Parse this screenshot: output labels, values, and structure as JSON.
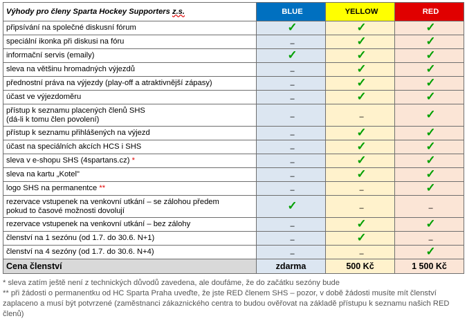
{
  "table": {
    "title_prefix": "Výhody pro členy Sparta Hockey Supporters ",
    "title_suffix": "z.s.",
    "tiers": [
      "BLUE",
      "YELLOW",
      "RED"
    ],
    "rows": [
      {
        "label": "připsívání na společné diskusní fórum",
        "star": "",
        "marks": [
          true,
          true,
          true
        ]
      },
      {
        "label": "speciální ikonka při diskusi na fóru",
        "star": "",
        "marks": [
          false,
          true,
          true
        ]
      },
      {
        "label": "informační servis (emaily)",
        "star": "",
        "marks": [
          true,
          true,
          true
        ]
      },
      {
        "label": "sleva na většinu hromadných výjezdů",
        "star": "",
        "marks": [
          false,
          true,
          true
        ]
      },
      {
        "label": "přednostní práva na výjezdy (play-off a atraktivnější zápasy)",
        "star": "",
        "marks": [
          false,
          true,
          true
        ]
      },
      {
        "label": "účast ve výjezdoměru",
        "star": "",
        "marks": [
          false,
          true,
          true
        ]
      },
      {
        "label": "přístup k seznamu placených členů SHS",
        "label2": "(dá-li k tomu člen povolení)",
        "star": "",
        "marks": [
          false,
          false,
          true
        ]
      },
      {
        "label": "přístup k seznamu přihlášených na výjezd",
        "star": "",
        "marks": [
          false,
          true,
          true
        ]
      },
      {
        "label": "účast na speciálních akcích HCS i SHS",
        "star": "",
        "marks": [
          false,
          true,
          true
        ]
      },
      {
        "label": "sleva v e-shopu SHS (4spartans.cz)",
        "star": "*",
        "marks": [
          false,
          true,
          true
        ]
      },
      {
        "label": "sleva na kartu „Kotel\"",
        "star": "",
        "marks": [
          false,
          true,
          true
        ]
      },
      {
        "label": "logo SHS na permanentce",
        "star": "**",
        "marks": [
          false,
          false,
          true
        ]
      },
      {
        "label": "rezervace vstupenek na venkovní utkání – se zálohou předem",
        "label2": "pokud to časové možnosti dovolují",
        "star": "",
        "marks": [
          true,
          false,
          false
        ]
      },
      {
        "label": "rezervace vstupenek na venkovní utkání – bez zálohy",
        "star": "",
        "marks": [
          false,
          true,
          true
        ]
      },
      {
        "label": "členství na 1 sezónu (od 1.7. do 30.6. N+1)",
        "star": "",
        "marks": [
          false,
          true,
          false
        ]
      },
      {
        "label": "členství na 4 sezóny (od 1.7. do 30.6. N+4)",
        "star": "",
        "marks": [
          false,
          false,
          true
        ]
      }
    ],
    "price": {
      "label": "Cena členství",
      "values": [
        "zdarma",
        "500 Kč",
        "1 500 Kč"
      ]
    }
  },
  "symbols": {
    "check": "✓",
    "dash": "–"
  },
  "colors": {
    "blue": "#0070c0",
    "yellow": "#ffff00",
    "red": "#e00000",
    "check": "#00a000"
  },
  "notes": [
    "* sleva zatím ještě není z technických důvodů zavedena, ale doufáme, že do začátku sezóny bude",
    "** při žádosti o permanentku od HC Sparta Praha uveďte, že jste RED členem SHS – pozor, v době žádosti musíte mít členství zaplaceno a musí být potvrzené (zaměstnanci zákaznického centra to budou ověřovat na základě přístupu k seznamu našich RED členů)"
  ]
}
